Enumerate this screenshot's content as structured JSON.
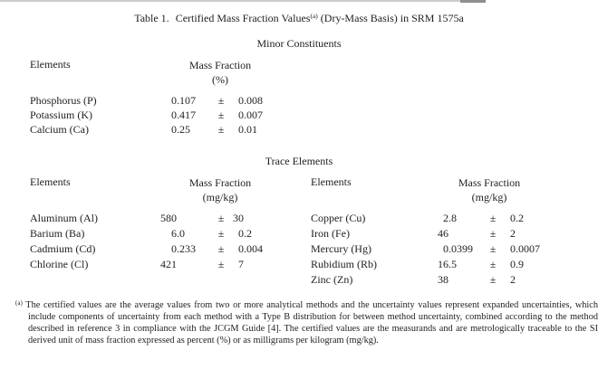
{
  "title": {
    "prefix": "Table 1.",
    "main": "Certified Mass Fraction Values",
    "marker": "(a)",
    "suffix": " (Dry-Mass Basis) in SRM 1575a"
  },
  "minor": {
    "heading": "Minor Constituents",
    "col_elements": "Elements",
    "col_mass_fraction": "Mass Fraction",
    "col_unit": "(%)",
    "pm": "±",
    "rows": [
      {
        "element": "Phosphorus (P)",
        "value": "0.107",
        "uncertainty": "0.008"
      },
      {
        "element": "Potassium (K)",
        "value": "0.417",
        "uncertainty": "0.007"
      },
      {
        "element": "Calcium (Ca)",
        "value": "0.25",
        "uncertainty": "0.01"
      }
    ]
  },
  "trace": {
    "heading": "Trace Elements",
    "left": {
      "col_elements": "Elements",
      "col_mass_fraction": "Mass Fraction",
      "col_unit": "(mg/kg)",
      "pm": "±",
      "rows": [
        {
          "element": "Aluminum (Al)",
          "value": "580",
          "uncertainty": "30"
        },
        {
          "element": "Barium (Ba)",
          "value": "6.0",
          "uncertainty": "0.2"
        },
        {
          "element": "Cadmium (Cd)",
          "value": "0.233",
          "uncertainty": "0.004"
        },
        {
          "element": "Chlorine (Cl)",
          "value": "421",
          "uncertainty": "7"
        }
      ]
    },
    "right": {
      "col_elements": "Elements",
      "col_mass_fraction": "Mass Fraction",
      "col_unit": "(mg/kg)",
      "pm": "±",
      "rows": [
        {
          "element": "Copper (Cu)",
          "value": "2.8",
          "uncertainty": "0.2"
        },
        {
          "element": "Iron (Fe)",
          "value": "46",
          "uncertainty": "2"
        },
        {
          "element": "Mercury (Hg)",
          "value": "0.0399",
          "uncertainty": "0.0007"
        },
        {
          "element": "Rubidium (Rb)",
          "value": "16.5",
          "uncertainty": "0.9"
        },
        {
          "element": "Zinc (Zn)",
          "value": "38",
          "uncertainty": "2"
        }
      ]
    }
  },
  "footnote": {
    "marker": "(a)",
    "text": "The certified values are the average values from two or more analytical methods and the uncertainty values represent expanded uncertainties, which include components of uncertainty from each method with a Type B distribution for between method uncertainty, combined according to the method described in reference 3 in compliance with the JCGM Guide [4].  The certified values are the measurands and are metrologically traceable to the SI derived unit of mass fraction expressed as percent (%) or as milligrams per kilogram (mg/kg)."
  }
}
